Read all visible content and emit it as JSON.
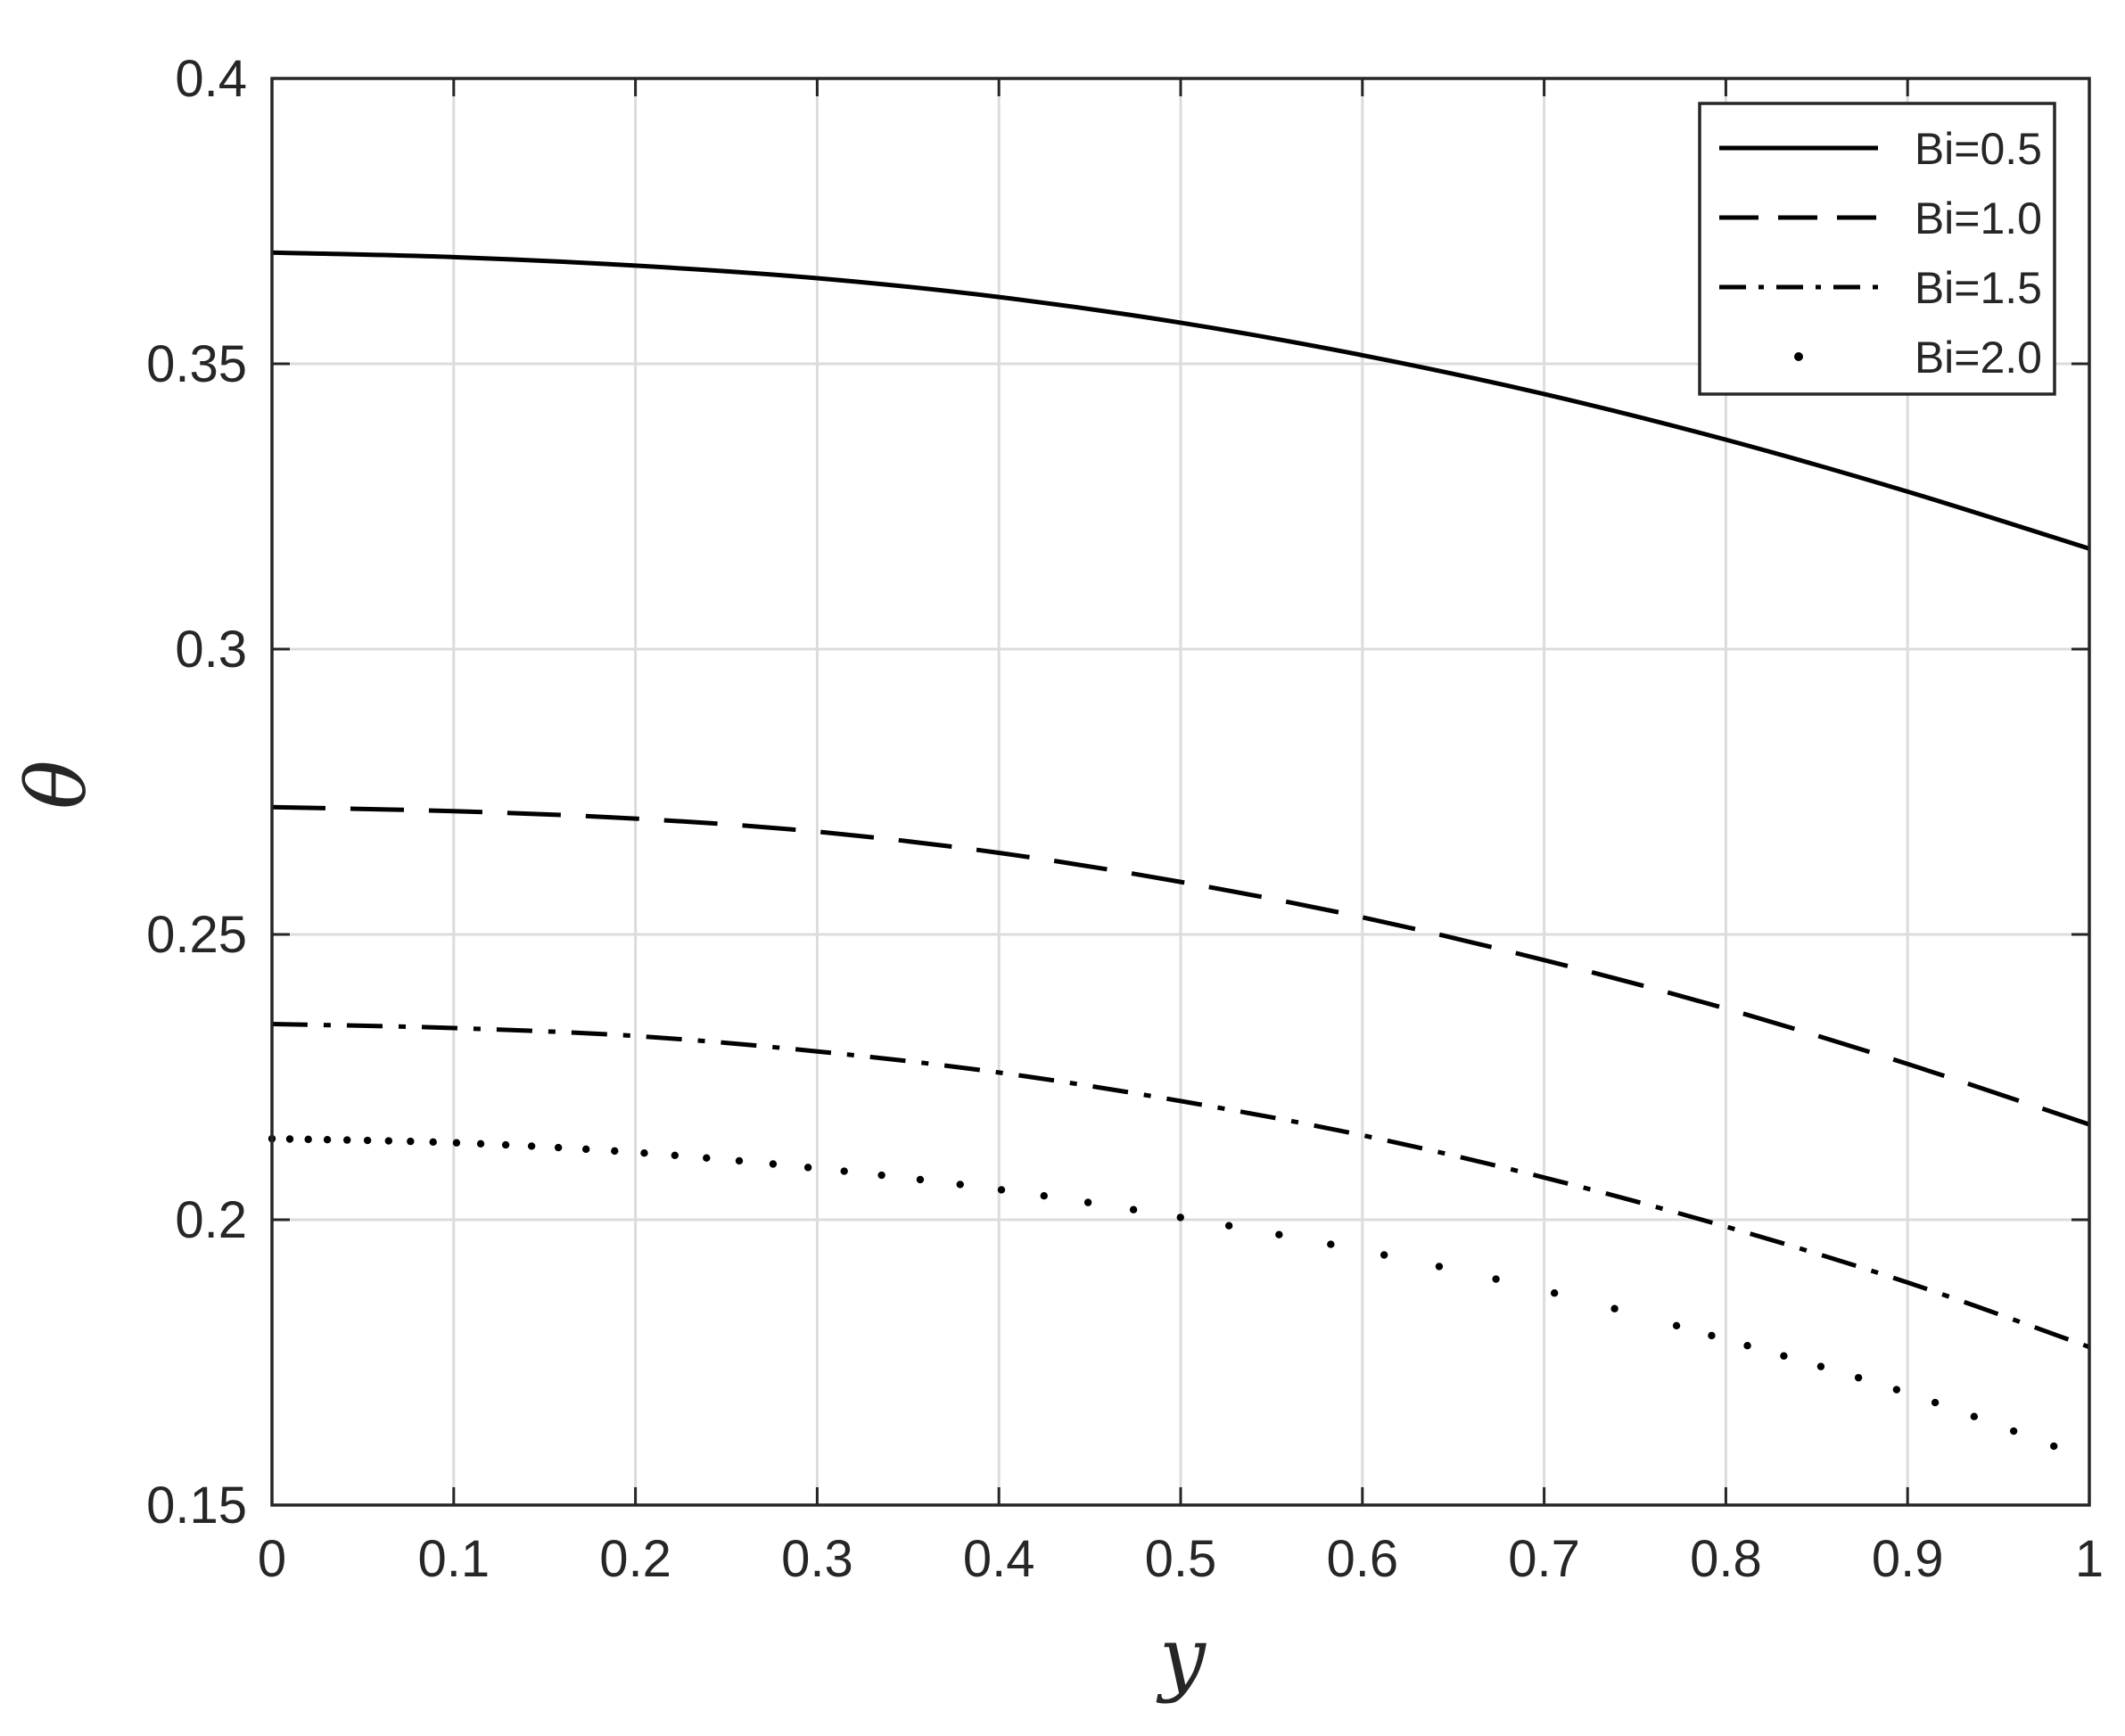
{
  "chart_data": {
    "type": "line",
    "xlabel": "y",
    "ylabel": "θ",
    "xlim": [
      0,
      1
    ],
    "ylim": [
      0.15,
      0.4
    ],
    "xticks": [
      0,
      0.1,
      0.2,
      0.3,
      0.4,
      0.5,
      0.6,
      0.7,
      0.8,
      0.9,
      1
    ],
    "xtick_labels": [
      "0",
      "0.1",
      "0.2",
      "0.3",
      "0.4",
      "0.5",
      "0.6",
      "0.7",
      "0.8",
      "0.9",
      "1"
    ],
    "yticks": [
      0.15,
      0.2,
      0.25,
      0.3,
      0.35,
      0.4
    ],
    "ytick_labels": [
      "0.15",
      "0.2",
      "0.25",
      "0.3",
      "0.35",
      "0.4"
    ],
    "grid": true,
    "legend_position": "top-right",
    "x": [
      0,
      0.1,
      0.2,
      0.3,
      0.4,
      0.5,
      0.6,
      0.7,
      0.8,
      0.9,
      1.0
    ],
    "series": [
      {
        "name": "Bi=0.5",
        "style": "solid",
        "values": [
          0.3695,
          0.3687,
          0.3672,
          0.365,
          0.3617,
          0.3572,
          0.3515,
          0.3447,
          0.3367,
          0.3276,
          0.3176
        ]
      },
      {
        "name": "Bi=1.0",
        "style": "dashed",
        "values": [
          0.2723,
          0.2716,
          0.2703,
          0.268,
          0.2643,
          0.2592,
          0.253,
          0.2455,
          0.237,
          0.2273,
          0.2167
        ]
      },
      {
        "name": "Bi=1.5",
        "style": "dashdot",
        "values": [
          0.2343,
          0.2336,
          0.2322,
          0.2295,
          0.2258,
          0.2208,
          0.2148,
          0.2074,
          0.1988,
          0.189,
          0.1777
        ]
      },
      {
        "name": "Bi=2.0",
        "style": "dotted",
        "values": [
          0.2142,
          0.2135,
          0.2118,
          0.209,
          0.2053,
          0.2004,
          0.1946,
          0.1876,
          0.179,
          0.1696,
          0.158
        ]
      }
    ]
  },
  "colors": {
    "line": "#000000",
    "grid": "#dcdcdc",
    "axis": "#262626",
    "background": "#ffffff"
  }
}
